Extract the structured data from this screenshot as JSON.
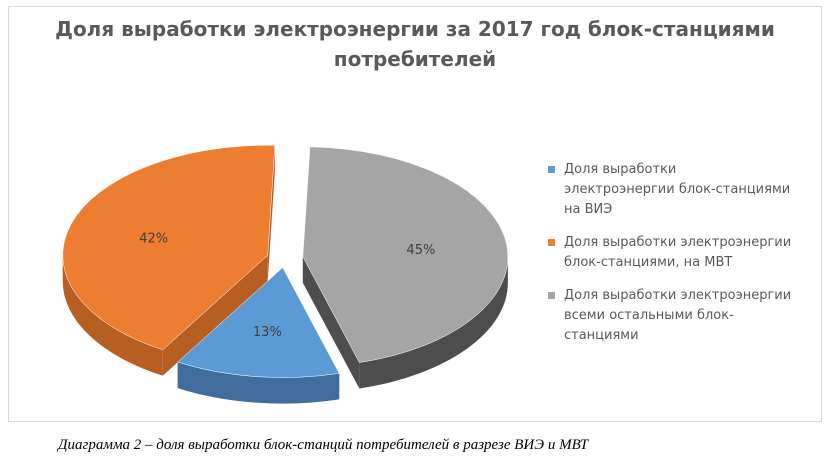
{
  "chart_data": {
    "type": "pie",
    "title": "Доля выработки электроэнергии за 2017 год блок-станциями потребителей",
    "title_lines": [
      "Доля выработки электроэнергии за 2017 год блок-станциями",
      "потребителей"
    ],
    "style": "3d-exploded",
    "slices": [
      {
        "label": "Доля выработки электроэнергии блок-станциями на ВИЭ",
        "value": 13,
        "display": "13%",
        "color": "#5b9bd5",
        "side_color": "#3f6e9c"
      },
      {
        "label": "Доля выработки электроэнергии блок-станциями, на МВТ",
        "value": 42,
        "display": "42%",
        "color": "#ed7d31",
        "side_color": "#b75f22"
      },
      {
        "label": "Доля выработки электроэнергии всеми остальными блок-станциями",
        "value": 45,
        "display": "45%",
        "color": "#a5a5a5",
        "side_color": "#4d4d4d"
      }
    ],
    "legend_position": "right",
    "legend_lines": [
      [
        "Доля выработки",
        "электроэнергии блок-станциями",
        "на ВИЭ"
      ],
      [
        "Доля выработки электроэнергии",
        "блок-станциями, на МВТ"
      ],
      [
        "Доля выработки электроэнергии",
        "всеми остальными блок-",
        "станциями"
      ]
    ]
  },
  "caption": "Диаграмма 2 – доля выработки блок-станций потребителей в разрезе ВИЭ и МВТ"
}
